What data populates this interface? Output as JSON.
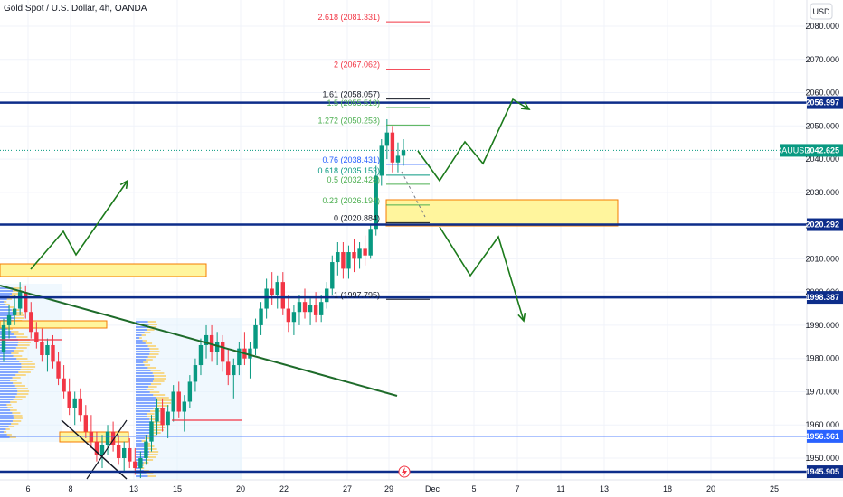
{
  "header": {
    "symbol_title": "Gold Spot / U.S. Dollar, 4h, OANDA"
  },
  "price_axis": {
    "currency": "USD",
    "ticks": [
      "2080.000",
      "2070.000",
      "2060.000",
      "2050.000",
      "2040.000",
      "2030.000",
      "2020.000",
      "2010.000",
      "2000.000",
      "1990.000",
      "1980.000",
      "1970.000",
      "1960.000",
      "1950.000"
    ]
  },
  "badges": {
    "current_price": {
      "symbol": "XAUUSD",
      "price": "2042.625",
      "value": 2042.625,
      "color": "#089981"
    },
    "levels": [
      {
        "label": "2056.997",
        "value": 2056.997,
        "color": "#0d2d8a"
      },
      {
        "label": "2020.292",
        "value": 2020.292,
        "color": "#0d2d8a"
      },
      {
        "label": "1998.387",
        "value": 1998.387,
        "color": "#0d2d8a"
      },
      {
        "label": "1956.561",
        "value": 1956.561,
        "color": "#2962ff"
      },
      {
        "label": "1945.905",
        "value": 1945.905,
        "color": "#0d2d8a"
      }
    ]
  },
  "time_axis": {
    "ticks": [
      "6",
      "8",
      "13",
      "15",
      "20",
      "22",
      "27",
      "29",
      "Dec",
      "5",
      "7",
      "11",
      "13",
      "18",
      "20",
      "25"
    ]
  },
  "fib_levels": [
    {
      "label": "2.618 (2081.331)",
      "value": 2081.331,
      "color": "#f23645"
    },
    {
      "label": "2 (2067.062)",
      "value": 2067.062,
      "color": "#f23645"
    },
    {
      "label": "1.61 (2058.057)",
      "value": 2058.057,
      "color": "#131722"
    },
    {
      "label": "1.5 (2055.513)",
      "value": 2055.513,
      "color": "#4caf50"
    },
    {
      "label": "1.272 (2050.253)",
      "value": 2050.253,
      "color": "#4caf50"
    },
    {
      "label": "0.76 (2038.431)",
      "value": 2038.431,
      "color": "#2962ff"
    },
    {
      "label": "0.618 (2035.153)",
      "value": 2035.153,
      "color": "#089981"
    },
    {
      "label": "0.5 (2032.428)",
      "value": 2032.428,
      "color": "#4caf50"
    },
    {
      "label": "0.23 (2026.194)",
      "value": 2026.194,
      "color": "#4caf50"
    },
    {
      "label": "0 (2020.884)",
      "value": 2020.884,
      "color": "#131722"
    },
    {
      "label": "-1 (1997.795)",
      "value": 1997.795,
      "color": "#131722"
    }
  ],
  "colors": {
    "up": "#089981",
    "down": "#f23645",
    "projection": "#1b7a1b",
    "zone": "#fff59d",
    "zone_border": "#f57c00",
    "trendline": "#1e6b2a"
  },
  "chart_data": {
    "type": "candlestick",
    "title": "Gold Spot / U.S. Dollar, 4h, OANDA",
    "symbol": "XAUUSD",
    "timeframe": "4h",
    "x_ticks": [
      "6",
      "8",
      "13",
      "15",
      "20",
      "22",
      "27",
      "29",
      "Dec",
      "5",
      "7",
      "11",
      "13",
      "18",
      "20",
      "25"
    ],
    "y_range": [
      1944,
      2085
    ],
    "last_price": 2042.625,
    "horizontal_levels": [
      2056.997,
      2020.292,
      1998.387,
      1956.561,
      1945.905
    ],
    "ohlc": [
      [
        1982,
        1992,
        1979,
        1990
      ],
      [
        1990,
        1996,
        1986,
        1993
      ],
      [
        1993,
        1999,
        1990,
        1995
      ],
      [
        1995,
        2003,
        1993,
        2000
      ],
      [
        2000,
        2002,
        1992,
        1994
      ],
      [
        1994,
        1997,
        1986,
        1988
      ],
      [
        1988,
        1991,
        1983,
        1985
      ],
      [
        1985,
        1989,
        1979,
        1981
      ],
      [
        1981,
        1986,
        1976,
        1984
      ],
      [
        1984,
        1987,
        1977,
        1979
      ],
      [
        1979,
        1982,
        1972,
        1974
      ],
      [
        1974,
        1978,
        1968,
        1970
      ],
      [
        1970,
        1974,
        1963,
        1965
      ],
      [
        1965,
        1970,
        1960,
        1968
      ],
      [
        1968,
        1971,
        1961,
        1963
      ],
      [
        1963,
        1966,
        1956,
        1958
      ],
      [
        1958,
        1963,
        1953,
        1955
      ],
      [
        1955,
        1958,
        1949,
        1951
      ],
      [
        1951,
        1957,
        1947,
        1954
      ],
      [
        1954,
        1960,
        1951,
        1958
      ],
      [
        1958,
        1961,
        1952,
        1954
      ],
      [
        1954,
        1957,
        1948,
        1950
      ],
      [
        1950,
        1955,
        1946,
        1953
      ],
      [
        1953,
        1956,
        1947,
        1949
      ],
      [
        1949,
        1953,
        1945,
        1947
      ],
      [
        1947,
        1952,
        1944,
        1950
      ],
      [
        1950,
        1957,
        1948,
        1955
      ],
      [
        1955,
        1963,
        1952,
        1961
      ],
      [
        1961,
        1968,
        1957,
        1965
      ],
      [
        1965,
        1968,
        1958,
        1960
      ],
      [
        1960,
        1966,
        1956,
        1964
      ],
      [
        1964,
        1972,
        1961,
        1970
      ],
      [
        1970,
        1973,
        1962,
        1964
      ],
      [
        1964,
        1969,
        1958,
        1967
      ],
      [
        1967,
        1975,
        1965,
        1973
      ],
      [
        1973,
        1980,
        1970,
        1978
      ],
      [
        1978,
        1986,
        1975,
        1984
      ],
      [
        1984,
        1990,
        1980,
        1987
      ],
      [
        1987,
        1990,
        1979,
        1982
      ],
      [
        1982,
        1988,
        1978,
        1985
      ],
      [
        1985,
        1987,
        1976,
        1979
      ],
      [
        1979,
        1983,
        1972,
        1975
      ],
      [
        1975,
        1980,
        1968,
        1978
      ],
      [
        1978,
        1985,
        1975,
        1983
      ],
      [
        1983,
        1988,
        1978,
        1980
      ],
      [
        1980,
        1985,
        1974,
        1983
      ],
      [
        1983,
        1992,
        1981,
        1990
      ],
      [
        1990,
        1997,
        1987,
        1995
      ],
      [
        1995,
        2004,
        1992,
        2001
      ],
      [
        2001,
        2006,
        1996,
        1999
      ],
      [
        1999,
        2005,
        1995,
        2003
      ],
      [
        2003,
        2006,
        1993,
        1995
      ],
      [
        1995,
        1999,
        1988,
        1991
      ],
      [
        1991,
        1996,
        1987,
        1994
      ],
      [
        1994,
        1999,
        1990,
        1997
      ],
      [
        1997,
        2001,
        1992,
        1994
      ],
      [
        1994,
        1998,
        1990,
        1996
      ],
      [
        1996,
        2000,
        1991,
        1993
      ],
      [
        1993,
        1999,
        1991,
        1997
      ],
      [
        1997,
        2003,
        1995,
        2001
      ],
      [
        2001,
        2011,
        1999,
        2009
      ],
      [
        2009,
        2015,
        2005,
        2012
      ],
      [
        2012,
        2015,
        2004,
        2007
      ],
      [
        2007,
        2014,
        2004,
        2012
      ],
      [
        2012,
        2016,
        2006,
        2010
      ],
      [
        2010,
        2015,
        2007,
        2013
      ],
      [
        2013,
        2017,
        2008,
        2011
      ],
      [
        2011,
        2020,
        2010,
        2019
      ],
      [
        2019,
        2038,
        2017,
        2035
      ],
      [
        2035,
        2046,
        2032,
        2044
      ],
      [
        2044,
        2052,
        2040,
        2048
      ],
      [
        2048,
        2050,
        2036,
        2039
      ],
      [
        2039,
        2045,
        2036,
        2041
      ],
      [
        2041,
        2046,
        2038,
        2042.6
      ]
    ]
  }
}
